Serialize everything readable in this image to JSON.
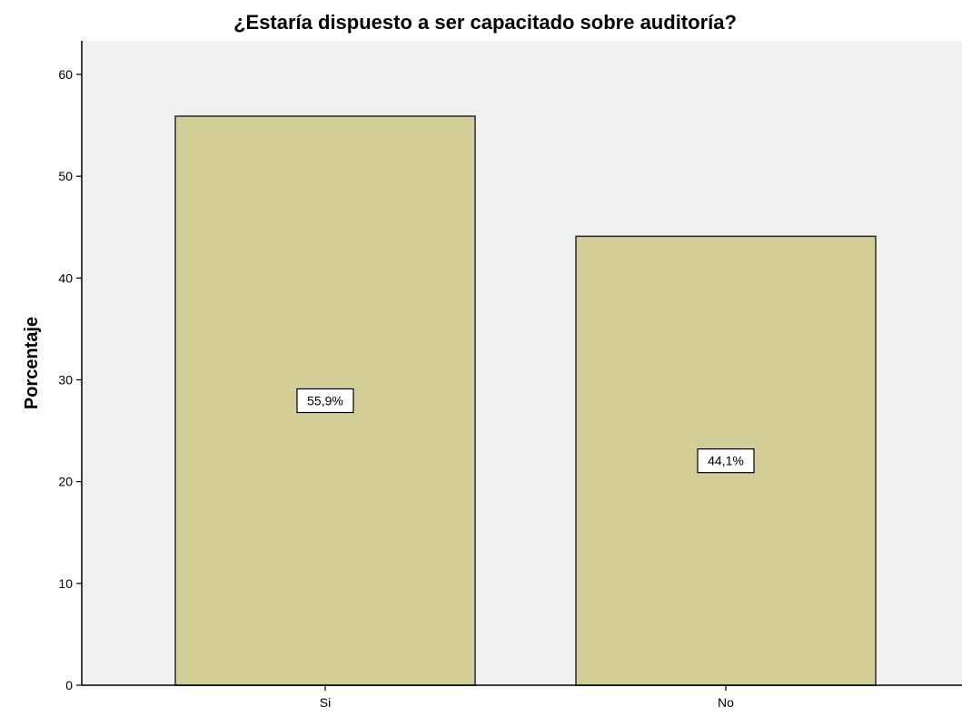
{
  "chart_data": {
    "type": "bar",
    "title": "¿Estaría dispuesto a ser capacitado sobre auditoría?",
    "xlabel": "",
    "ylabel": "Porcentaje",
    "categories": [
      "Si",
      "No"
    ],
    "values": [
      55.9,
      44.1
    ],
    "data_labels": [
      "55,9%",
      "44,1%"
    ],
    "ylim": [
      0,
      60
    ],
    "yticks": [
      0,
      10,
      20,
      30,
      40,
      50,
      60
    ],
    "grid": false,
    "legend": "none",
    "colors": {
      "bar_fill": "#d3cd98",
      "bar_stroke": "#2b2b2b",
      "plot_background": "#f0f0f0",
      "axis": "#000000"
    }
  }
}
